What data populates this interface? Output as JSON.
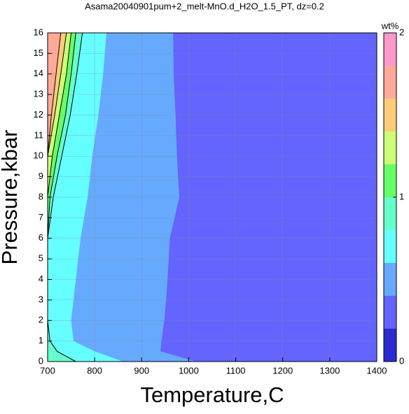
{
  "chart_data": {
    "type": "contour",
    "title": "Asama20040901pum+2_melt-MnO.d_H2O_1.5_PT, dz=0.2",
    "x_label": "Temperature,C",
    "y_label": "Pressure,kbar",
    "colorbar_label": "wt%",
    "xlim": [
      700,
      1400
    ],
    "xticks": [
      700,
      800,
      900,
      1000,
      1100,
      1200,
      1300,
      1400
    ],
    "ylim": [
      0,
      16
    ],
    "yticks": [
      0,
      1,
      2,
      3,
      4,
      5,
      6,
      7,
      8,
      9,
      10,
      11,
      12,
      13,
      14,
      15,
      16
    ],
    "grid": true,
    "clim": [
      0,
      2
    ],
    "cticks": [
      0,
      1,
      2
    ],
    "levels": [
      0,
      0.2,
      0.4,
      0.6,
      0.8,
      1.0,
      1.2,
      1.4,
      1.6,
      1.8,
      2.0
    ],
    "colors": [
      "#2b2bd0",
      "#6464ff",
      "#66aaff",
      "#66ffff",
      "#66ffcc",
      "#66ff66",
      "#ccff77",
      "#ffcc77",
      "#ffaa99",
      "#ff99cc"
    ],
    "background_band": 1,
    "pressure": [
      0,
      0.5,
      1,
      2,
      3,
      4,
      6,
      8,
      10,
      12,
      14,
      16
    ],
    "boundaries": [
      {
        "level": 0.4,
        "t": [
          1016,
          940,
          942,
          948,
          952,
          955,
          960,
          980,
          975,
          972,
          968,
          967
        ]
      },
      {
        "level": 0.6,
        "t": [
          860,
          800,
          755,
          750,
          755,
          760,
          770,
          785,
          795,
          808,
          818,
          825
        ]
      },
      {
        "level": 0.8,
        "t": [
          760,
          720,
          705,
          700,
          700,
          700,
          700,
          712,
          730,
          748,
          762,
          774
        ]
      },
      {
        "level": 1.0,
        "t": [
          700,
          700,
          700,
          700,
          700,
          700,
          700,
          705,
          720,
          738,
          750,
          760
        ]
      },
      {
        "level": 1.2,
        "t": [
          700,
          700,
          700,
          700,
          700,
          700,
          700,
          700,
          710,
          725,
          740,
          750
        ]
      },
      {
        "level": 1.4,
        "t": [
          700,
          700,
          700,
          700,
          700,
          700,
          700,
          700,
          700,
          715,
          728,
          740
        ]
      },
      {
        "level": 1.6,
        "t": [
          700,
          700,
          700,
          700,
          700,
          700,
          700,
          700,
          700,
          708,
          718,
          728
        ]
      }
    ]
  }
}
